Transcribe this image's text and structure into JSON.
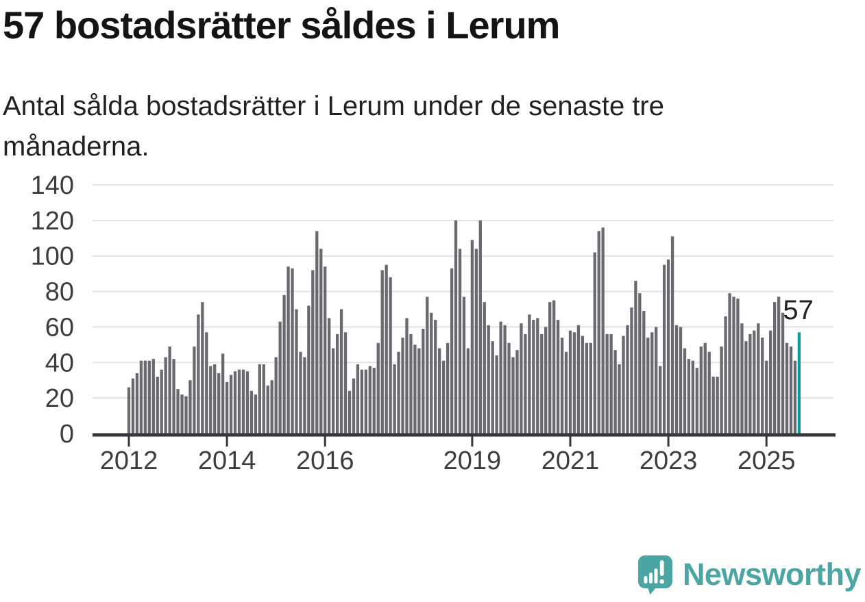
{
  "page": {
    "title": "57 bostadsrätter såldes i Lerum",
    "subtitle": "Antal sålda bostadsrätter i Lerum under de senaste tre månaderna."
  },
  "branding": {
    "name": "Newsworthy",
    "logo_icon": "speech-bubble-with-bar-chart-and-exclamation",
    "color": "#4AA5A3"
  },
  "colors": {
    "background": "#FFFFFF",
    "bar": "#69696F",
    "highlight": "#0B9B9B",
    "grid": "#E2E2E2",
    "axis": "#37373B",
    "tick_label": "#3D3D3D",
    "annotation": "#222222"
  },
  "chart_data": {
    "type": "bar",
    "title": "57 bostadsrätter såldes i Lerum",
    "xlabel": "",
    "ylabel": "",
    "x_unit": "month",
    "x_range_start": "2012-01",
    "grid": true,
    "legend": "none",
    "ylim": [
      0,
      140
    ],
    "y_ticks": [
      0,
      20,
      40,
      60,
      80,
      100,
      120,
      140
    ],
    "x_tick_labels": [
      "2012",
      "2014",
      "2016",
      "2019",
      "2021",
      "2023",
      "2025"
    ],
    "x_tick_month_index": [
      0,
      24,
      48,
      84,
      108,
      132,
      156
    ],
    "highlight": {
      "position": "last",
      "value": 57,
      "label": "57"
    },
    "values": [
      26,
      31,
      34,
      41,
      41,
      41,
      42,
      32,
      36,
      43,
      49,
      42,
      25,
      22,
      21,
      30,
      49,
      67,
      74,
      57,
      38,
      39,
      34,
      45,
      29,
      33,
      35,
      36,
      36,
      35,
      24,
      22,
      39,
      39,
      27,
      30,
      43,
      63,
      78,
      94,
      93,
      70,
      46,
      43,
      72,
      92,
      114,
      104,
      94,
      65,
      48,
      56,
      70,
      57,
      24,
      31,
      39,
      36,
      36,
      38,
      37,
      51,
      92,
      95,
      88,
      39,
      46,
      54,
      65,
      56,
      50,
      48,
      59,
      77,
      68,
      64,
      48,
      41,
      51,
      93,
      120,
      104,
      77,
      48,
      109,
      104,
      120,
      74,
      61,
      52,
      44,
      63,
      61,
      51,
      43,
      47,
      62,
      56,
      67,
      64,
      65,
      56,
      60,
      74,
      75,
      64,
      54,
      46,
      58,
      57,
      61,
      55,
      51,
      51,
      102,
      114,
      116,
      56,
      56,
      47,
      39,
      55,
      61,
      71,
      86,
      79,
      69,
      54,
      57,
      60,
      38,
      95,
      98,
      111,
      61,
      60,
      48,
      42,
      41,
      37,
      49,
      51,
      46,
      32,
      32,
      49,
      66,
      79,
      77,
      76,
      62,
      52,
      56,
      58,
      62,
      54,
      41,
      58,
      74,
      77,
      68,
      51,
      49,
      41,
      57
    ]
  }
}
